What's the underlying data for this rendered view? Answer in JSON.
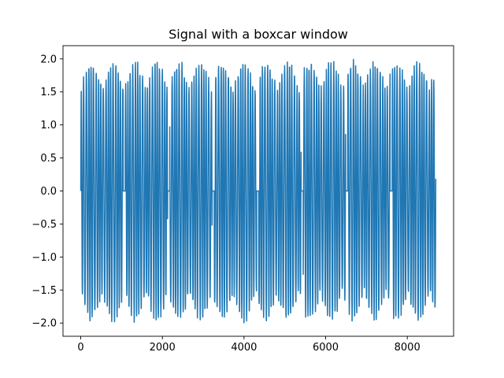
{
  "chart_data": {
    "type": "line",
    "title": "Signal with a boxcar window",
    "xlabel": "",
    "ylabel": "",
    "xlim": [
      -435,
      9135
    ],
    "ylim": [
      -2.2,
      2.2
    ],
    "x_ticks": [
      0,
      2000,
      4000,
      6000,
      8000
    ],
    "x_tick_labels": [
      "0",
      "2000",
      "4000",
      "6000",
      "8000"
    ],
    "y_ticks": [
      -2.0,
      -1.5,
      -1.0,
      -0.5,
      0.0,
      0.5,
      1.0,
      1.5,
      2.0
    ],
    "y_tick_labels": [
      "−2.0",
      "−1.5",
      "−1.0",
      "−0.5",
      "0.0",
      "0.5",
      "1.0",
      "1.5",
      "2.0"
    ],
    "grid": false,
    "legend": "none",
    "series": [
      {
        "color": "#1f77b4",
        "envelope_amplitude": 2.0,
        "segments": [
          {
            "x_start": 0,
            "x_end": 1040,
            "oscillating": true
          },
          {
            "x_start": 1040,
            "x_end": 1090,
            "oscillating": false,
            "value": 0.0
          },
          {
            "x_start": 1090,
            "x_end": 2130,
            "oscillating": true
          },
          {
            "x_start": 2130,
            "x_end": 2180,
            "oscillating": false,
            "value": 0.0
          },
          {
            "x_start": 2180,
            "x_end": 3220,
            "oscillating": true
          },
          {
            "x_start": 3220,
            "x_end": 3270,
            "oscillating": false,
            "value": 0.0
          },
          {
            "x_start": 3270,
            "x_end": 4310,
            "oscillating": true
          },
          {
            "x_start": 4310,
            "x_end": 4360,
            "oscillating": false,
            "value": 0.0
          },
          {
            "x_start": 4360,
            "x_end": 5400,
            "oscillating": true
          },
          {
            "x_start": 5400,
            "x_end": 5450,
            "oscillating": false,
            "value": 0.0
          },
          {
            "x_start": 5450,
            "x_end": 6490,
            "oscillating": true
          },
          {
            "x_start": 6490,
            "x_end": 6540,
            "oscillating": false,
            "value": 0.0
          },
          {
            "x_start": 6540,
            "x_end": 7580,
            "oscillating": true
          },
          {
            "x_start": 7580,
            "x_end": 7630,
            "oscillating": false,
            "value": 0.0
          },
          {
            "x_start": 7630,
            "x_end": 8700,
            "oscillating": true
          }
        ]
      }
    ]
  }
}
